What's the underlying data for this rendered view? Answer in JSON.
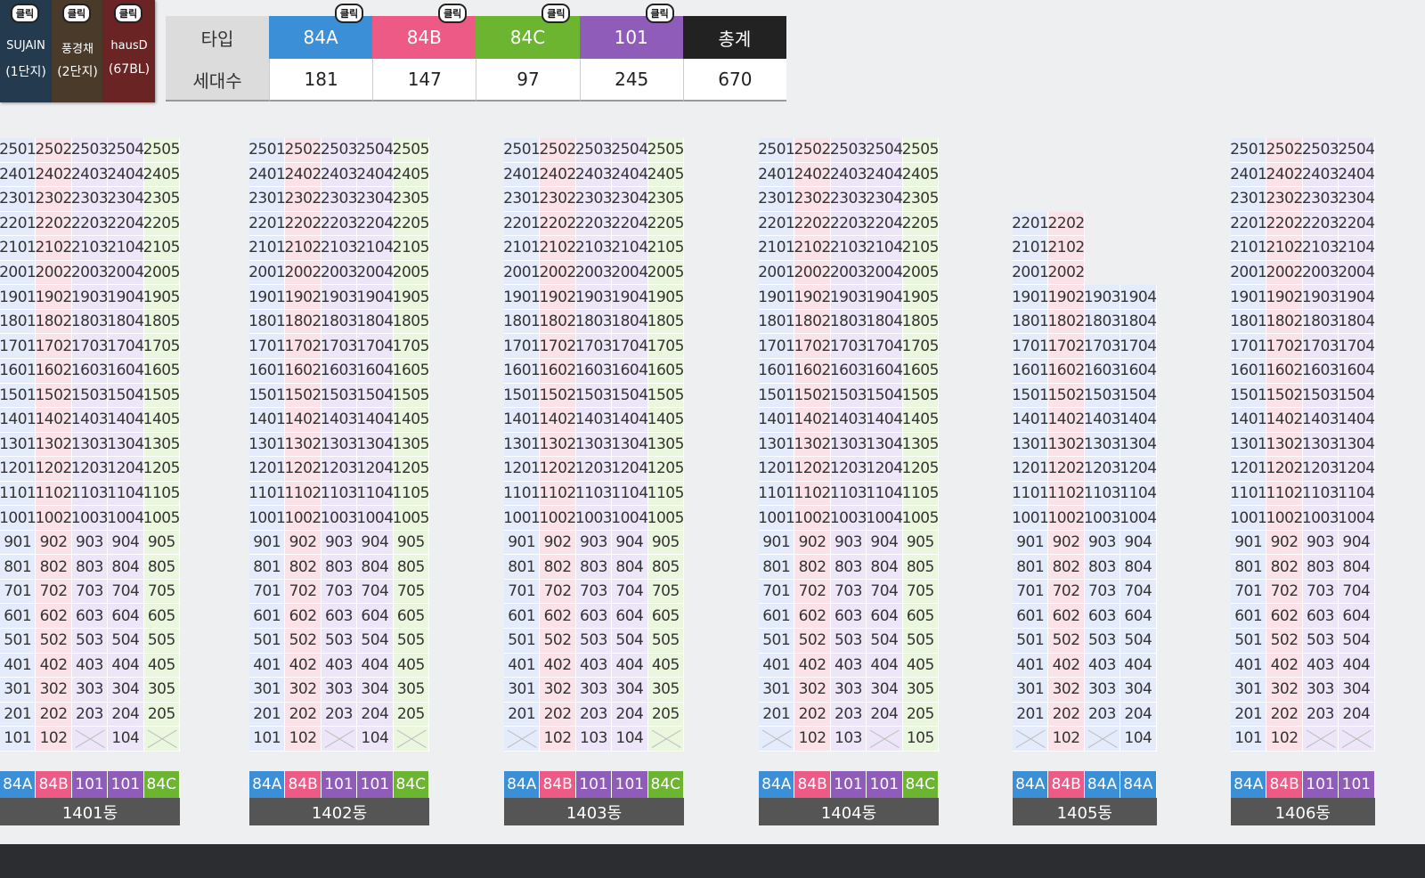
{
  "logos": [
    {
      "name": "SUJAIN",
      "sub": "(1단지)"
    },
    {
      "name": "풍경채",
      "sub": "(2단지)"
    },
    {
      "name": "hausD",
      "sub": "(67BL)"
    }
  ],
  "click_label": "클릭",
  "summary": {
    "headers": [
      "타입",
      "84A",
      "84B",
      "84C",
      "101",
      "총계"
    ],
    "counts_label": "세대수",
    "counts": [
      181,
      147,
      97,
      245,
      670
    ]
  },
  "type_styles": {
    "84A": {
      "color": "#3b8fd6",
      "tint": "#e4ecfb"
    },
    "84B": {
      "color": "#ee5a86",
      "tint": "#fbe2e8"
    },
    "84C": {
      "color": "#6cb530",
      "tint": "#eaf6dd"
    },
    "101": {
      "color": "#8f5cba",
      "tint": "#ece6f8"
    },
    "총계": {
      "color": "#222222",
      "tint": "#ffffff"
    }
  },
  "buildings": [
    {
      "name": "1401동",
      "types": [
        "84A",
        "84B",
        "101",
        "101",
        "84C"
      ],
      "rows": [
        [
          2501,
          2502,
          2503,
          2504,
          2505
        ],
        [
          2401,
          2402,
          2403,
          2404,
          2405
        ],
        [
          2301,
          2302,
          2303,
          2304,
          2305
        ],
        [
          2201,
          2202,
          2203,
          2204,
          2205
        ],
        [
          2101,
          2102,
          2103,
          2104,
          2105
        ],
        [
          2001,
          2002,
          2003,
          2004,
          2005
        ],
        [
          1901,
          1902,
          1903,
          1904,
          1905
        ],
        [
          1801,
          1802,
          1803,
          1804,
          1805
        ],
        [
          1701,
          1702,
          1703,
          1704,
          1705
        ],
        [
          1601,
          1602,
          1603,
          1604,
          1605
        ],
        [
          1501,
          1502,
          1503,
          1504,
          1505
        ],
        [
          1401,
          1402,
          1403,
          1404,
          1405
        ],
        [
          1301,
          1302,
          1303,
          1304,
          1305
        ],
        [
          1201,
          1202,
          1203,
          1204,
          1205
        ],
        [
          1101,
          1102,
          1103,
          1104,
          1105
        ],
        [
          1001,
          1002,
          1003,
          1004,
          1005
        ],
        [
          901,
          902,
          903,
          904,
          905
        ],
        [
          801,
          802,
          803,
          804,
          805
        ],
        [
          701,
          702,
          703,
          704,
          705
        ],
        [
          601,
          602,
          603,
          604,
          605
        ],
        [
          501,
          502,
          503,
          504,
          505
        ],
        [
          401,
          402,
          403,
          404,
          405
        ],
        [
          301,
          302,
          303,
          304,
          305
        ],
        [
          201,
          202,
          203,
          204,
          205
        ],
        [
          101,
          102,
          null,
          104,
          null
        ]
      ]
    },
    {
      "name": "1402동",
      "types": [
        "84A",
        "84B",
        "101",
        "101",
        "84C"
      ],
      "rows": [
        [
          2501,
          2502,
          2503,
          2504,
          2505
        ],
        [
          2401,
          2402,
          2403,
          2404,
          2405
        ],
        [
          2301,
          2302,
          2303,
          2304,
          2305
        ],
        [
          2201,
          2202,
          2203,
          2204,
          2205
        ],
        [
          2101,
          2102,
          2103,
          2104,
          2105
        ],
        [
          2001,
          2002,
          2003,
          2004,
          2005
        ],
        [
          1901,
          1902,
          1903,
          1904,
          1905
        ],
        [
          1801,
          1802,
          1803,
          1804,
          1805
        ],
        [
          1701,
          1702,
          1703,
          1704,
          1705
        ],
        [
          1601,
          1602,
          1603,
          1604,
          1605
        ],
        [
          1501,
          1502,
          1503,
          1504,
          1505
        ],
        [
          1401,
          1402,
          1403,
          1404,
          1405
        ],
        [
          1301,
          1302,
          1303,
          1304,
          1305
        ],
        [
          1201,
          1202,
          1203,
          1204,
          1205
        ],
        [
          1101,
          1102,
          1103,
          1104,
          1105
        ],
        [
          1001,
          1002,
          1003,
          1004,
          1005
        ],
        [
          901,
          902,
          903,
          904,
          905
        ],
        [
          801,
          802,
          803,
          804,
          805
        ],
        [
          701,
          702,
          703,
          704,
          705
        ],
        [
          601,
          602,
          603,
          604,
          605
        ],
        [
          501,
          502,
          503,
          504,
          505
        ],
        [
          401,
          402,
          403,
          404,
          405
        ],
        [
          301,
          302,
          303,
          304,
          305
        ],
        [
          201,
          202,
          203,
          204,
          205
        ],
        [
          101,
          102,
          null,
          104,
          null
        ]
      ]
    },
    {
      "name": "1403동",
      "types": [
        "84A",
        "84B",
        "101",
        "101",
        "84C"
      ],
      "rows": [
        [
          2501,
          2502,
          2503,
          2504,
          2505
        ],
        [
          2401,
          2402,
          2403,
          2404,
          2405
        ],
        [
          2301,
          2302,
          2303,
          2304,
          2305
        ],
        [
          2201,
          2202,
          2203,
          2204,
          2205
        ],
        [
          2101,
          2102,
          2103,
          2104,
          2105
        ],
        [
          2001,
          2002,
          2003,
          2004,
          2005
        ],
        [
          1901,
          1902,
          1903,
          1904,
          1905
        ],
        [
          1801,
          1802,
          1803,
          1804,
          1805
        ],
        [
          1701,
          1702,
          1703,
          1704,
          1705
        ],
        [
          1601,
          1602,
          1603,
          1604,
          1605
        ],
        [
          1501,
          1502,
          1503,
          1504,
          1505
        ],
        [
          1401,
          1402,
          1403,
          1404,
          1405
        ],
        [
          1301,
          1302,
          1303,
          1304,
          1305
        ],
        [
          1201,
          1202,
          1203,
          1204,
          1205
        ],
        [
          1101,
          1102,
          1103,
          1104,
          1105
        ],
        [
          1001,
          1002,
          1003,
          1004,
          1005
        ],
        [
          901,
          902,
          903,
          904,
          905
        ],
        [
          801,
          802,
          803,
          804,
          805
        ],
        [
          701,
          702,
          703,
          704,
          705
        ],
        [
          601,
          602,
          603,
          604,
          605
        ],
        [
          501,
          502,
          503,
          504,
          505
        ],
        [
          401,
          402,
          403,
          404,
          405
        ],
        [
          301,
          302,
          303,
          304,
          305
        ],
        [
          201,
          202,
          203,
          204,
          205
        ],
        [
          null,
          102,
          103,
          104,
          null
        ]
      ]
    },
    {
      "name": "1404동",
      "types": [
        "84A",
        "84B",
        "101",
        "101",
        "84C"
      ],
      "rows": [
        [
          2501,
          2502,
          2503,
          2504,
          2505
        ],
        [
          2401,
          2402,
          2403,
          2404,
          2405
        ],
        [
          2301,
          2302,
          2303,
          2304,
          2305
        ],
        [
          2201,
          2202,
          2203,
          2204,
          2205
        ],
        [
          2101,
          2102,
          2103,
          2104,
          2105
        ],
        [
          2001,
          2002,
          2003,
          2004,
          2005
        ],
        [
          1901,
          1902,
          1903,
          1904,
          1905
        ],
        [
          1801,
          1802,
          1803,
          1804,
          1805
        ],
        [
          1701,
          1702,
          1703,
          1704,
          1705
        ],
        [
          1601,
          1602,
          1603,
          1604,
          1605
        ],
        [
          1501,
          1502,
          1503,
          1504,
          1505
        ],
        [
          1401,
          1402,
          1403,
          1404,
          1405
        ],
        [
          1301,
          1302,
          1303,
          1304,
          1305
        ],
        [
          1201,
          1202,
          1203,
          1204,
          1205
        ],
        [
          1101,
          1102,
          1103,
          1104,
          1105
        ],
        [
          1001,
          1002,
          1003,
          1004,
          1005
        ],
        [
          901,
          902,
          903,
          904,
          905
        ],
        [
          801,
          802,
          803,
          804,
          805
        ],
        [
          701,
          702,
          703,
          704,
          705
        ],
        [
          601,
          602,
          603,
          604,
          605
        ],
        [
          501,
          502,
          503,
          504,
          505
        ],
        [
          401,
          402,
          403,
          404,
          405
        ],
        [
          301,
          302,
          303,
          304,
          305
        ],
        [
          201,
          202,
          203,
          204,
          205
        ],
        [
          null,
          102,
          103,
          null,
          105
        ]
      ]
    },
    {
      "name": "1405동",
      "types": [
        "84A",
        "84B",
        "84A",
        "84A"
      ],
      "rows": [
        [
          2201,
          2202
        ],
        [
          2101,
          2102
        ],
        [
          2001,
          2002
        ],
        [
          1901,
          1902,
          1903,
          1904
        ],
        [
          1801,
          1802,
          1803,
          1804
        ],
        [
          1701,
          1702,
          1703,
          1704
        ],
        [
          1601,
          1602,
          1603,
          1604
        ],
        [
          1501,
          1502,
          1503,
          1504
        ],
        [
          1401,
          1402,
          1403,
          1404
        ],
        [
          1301,
          1302,
          1303,
          1304
        ],
        [
          1201,
          1202,
          1203,
          1204
        ],
        [
          1101,
          1102,
          1103,
          1104
        ],
        [
          1001,
          1002,
          1003,
          1004
        ],
        [
          901,
          902,
          903,
          904
        ],
        [
          801,
          802,
          803,
          804
        ],
        [
          701,
          702,
          703,
          704
        ],
        [
          601,
          602,
          603,
          604
        ],
        [
          501,
          502,
          503,
          504
        ],
        [
          401,
          402,
          403,
          404
        ],
        [
          301,
          302,
          303,
          304
        ],
        [
          201,
          202,
          203,
          204
        ],
        [
          null,
          102,
          null,
          104
        ]
      ]
    },
    {
      "name": "1406동",
      "types": [
        "84A",
        "84B",
        "101",
        "101"
      ],
      "rows": [
        [
          2501,
          2502,
          2503,
          2504
        ],
        [
          2401,
          2402,
          2403,
          2404
        ],
        [
          2301,
          2302,
          2303,
          2304
        ],
        [
          2201,
          2202,
          2203,
          2204
        ],
        [
          2101,
          2102,
          2103,
          2104
        ],
        [
          2001,
          2002,
          2003,
          2004
        ],
        [
          1901,
          1902,
          1903,
          1904
        ],
        [
          1801,
          1802,
          1803,
          1804
        ],
        [
          1701,
          1702,
          1703,
          1704
        ],
        [
          1601,
          1602,
          1603,
          1604
        ],
        [
          1501,
          1502,
          1503,
          1504
        ],
        [
          1401,
          1402,
          1403,
          1404
        ],
        [
          1301,
          1302,
          1303,
          1304
        ],
        [
          1201,
          1202,
          1203,
          1204
        ],
        [
          1101,
          1102,
          1103,
          1104
        ],
        [
          1001,
          1002,
          1003,
          1004
        ],
        [
          901,
          902,
          903,
          904
        ],
        [
          801,
          802,
          803,
          804
        ],
        [
          701,
          702,
          703,
          704
        ],
        [
          601,
          602,
          603,
          604
        ],
        [
          501,
          502,
          503,
          504
        ],
        [
          401,
          402,
          403,
          404
        ],
        [
          301,
          302,
          303,
          304
        ],
        [
          201,
          202,
          203,
          204
        ],
        [
          101,
          102,
          null,
          null
        ]
      ]
    }
  ]
}
